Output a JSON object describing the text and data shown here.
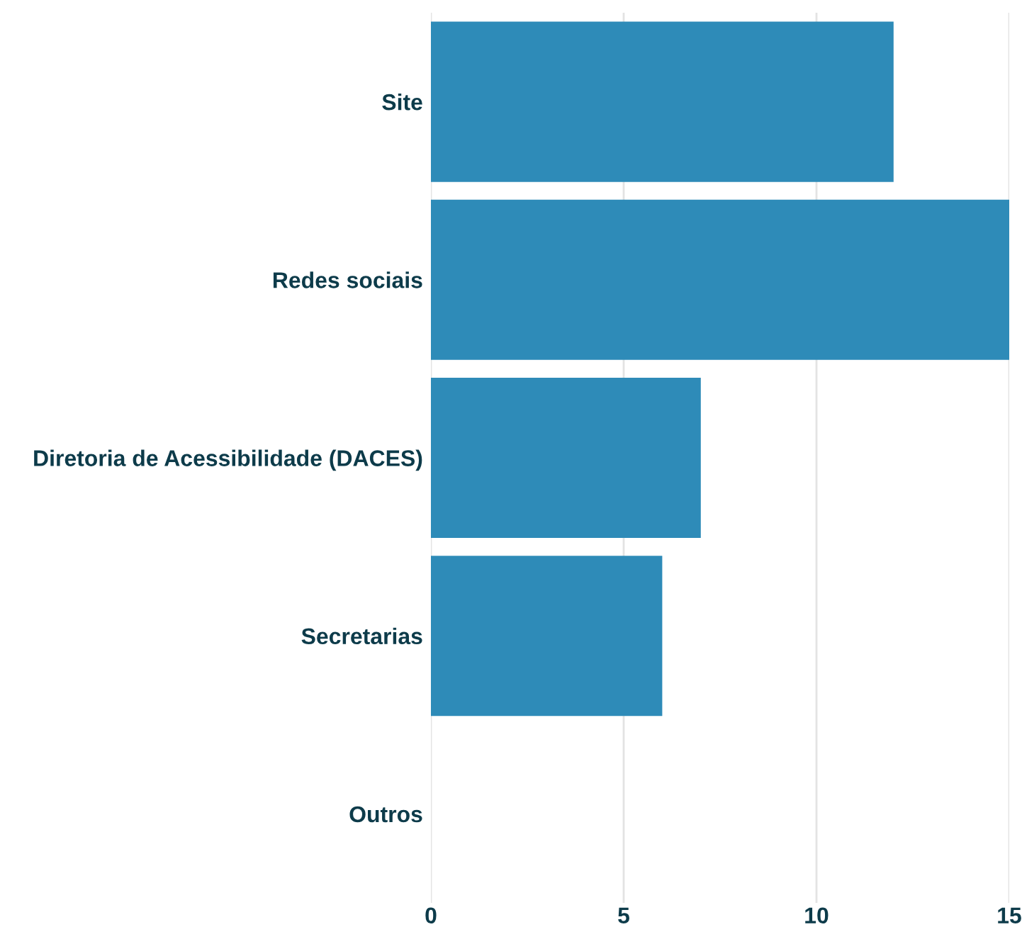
{
  "chart_data": {
    "type": "bar",
    "orientation": "horizontal",
    "categories": [
      "Site",
      "Redes sociais",
      "Diretoria de Acessibilidade (DACES)",
      "Secretarias",
      "Outros"
    ],
    "values": [
      12,
      15,
      7,
      6,
      0
    ],
    "color": "#2e8bb8",
    "xlim": [
      0,
      15
    ],
    "xticks": [
      0,
      5,
      10,
      15
    ],
    "grid": "x",
    "legend": false
  }
}
